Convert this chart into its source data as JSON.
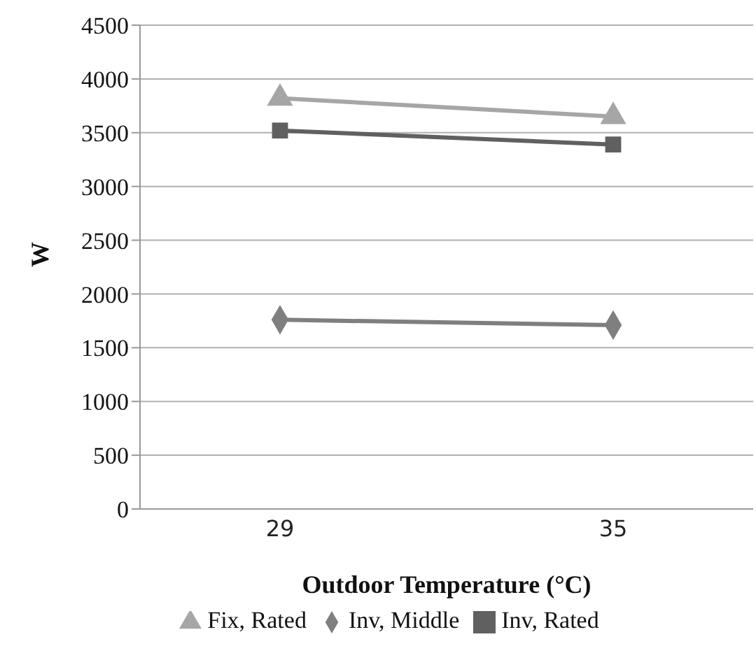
{
  "chart_data": {
    "type": "line",
    "xlabel": "Outdoor Temperature (°C)",
    "ylabel": "W",
    "categories": [
      "29",
      "35"
    ],
    "series": [
      {
        "name": "Inv, Middle",
        "color": "#7f7f7f",
        "marker": "diamond",
        "values": [
          1760,
          1710
        ]
      },
      {
        "name": "Inv, Rated",
        "color": "#606060",
        "marker": "square",
        "values": [
          3520,
          3390
        ]
      },
      {
        "name": "Fix, Rated",
        "color": "#a6a6a6",
        "marker": "triangle",
        "values": [
          3820,
          3650
        ]
      }
    ],
    "ylim": [
      0,
      4500
    ],
    "yticks": [
      0,
      500,
      1000,
      1500,
      2000,
      2500,
      3000,
      3500,
      4000,
      4500
    ],
    "grid": "y",
    "legend": "bottom"
  }
}
